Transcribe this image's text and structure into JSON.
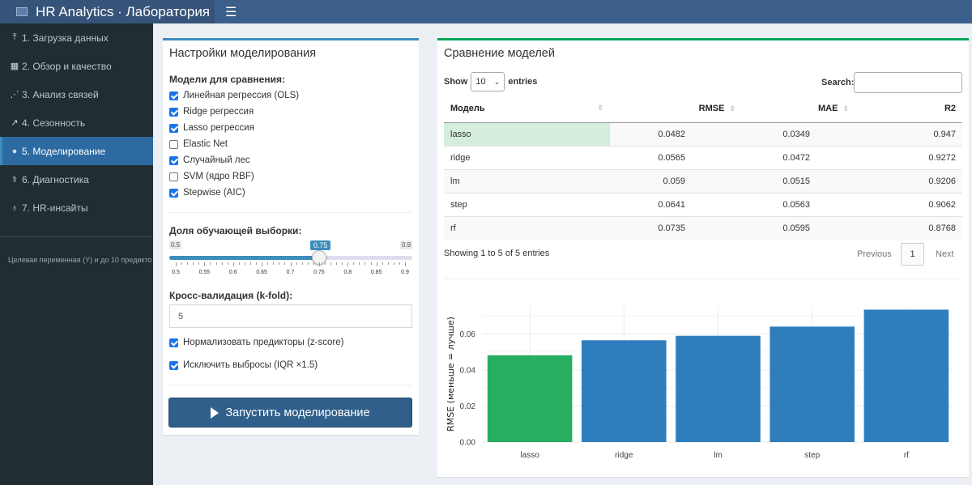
{
  "header": {
    "title": "HR Analytics · Лаборатория",
    "menu_icon": "hamburger-icon"
  },
  "sidebar": {
    "items": [
      {
        "label": "1. Загрузка данных",
        "icon": "upload-icon",
        "glyph": "⤒"
      },
      {
        "label": "2. Обзор и качество",
        "icon": "table-icon",
        "glyph": "▦"
      },
      {
        "label": "3. Анализ связей",
        "icon": "network-icon",
        "glyph": "⋰"
      },
      {
        "label": "4. Сезонность",
        "icon": "line-chart-icon",
        "glyph": "↗"
      },
      {
        "label": "5. Моделирование",
        "icon": "brain-icon",
        "glyph": "●",
        "active": true
      },
      {
        "label": "6. Диагностика",
        "icon": "stethoscope-icon",
        "glyph": "⚕"
      },
      {
        "label": "7. HR-инсайты",
        "icon": "lightbulb-icon",
        "glyph": "♁"
      }
    ],
    "note": "Целевая переменная (Y) и до 10 предикто"
  },
  "settings": {
    "title": "Настройки моделирования",
    "models_label": "Модели для сравнения:",
    "models": [
      {
        "label": "Линейная регрессия (OLS)",
        "checked": true
      },
      {
        "label": "Ridge регрессия",
        "checked": true
      },
      {
        "label": "Lasso регрессия",
        "checked": true
      },
      {
        "label": "Elastic Net",
        "checked": false
      },
      {
        "label": "Случайный лес",
        "checked": true
      },
      {
        "label": "SVM (ядро RBF)",
        "checked": false
      },
      {
        "label": "Stepwise (AIC)",
        "checked": true
      }
    ],
    "train_share": {
      "label": "Доля обучающей выборки:",
      "min": "0.5",
      "max": "0.9",
      "value": 0.75,
      "value_label": "0.75",
      "ticks": [
        "0.5",
        "0.55",
        "0.6",
        "0.65",
        "0.7",
        "0.75",
        "0.8",
        "0.85",
        "0.9"
      ]
    },
    "kfold": {
      "label": "Кросс-валидация (k-fold):",
      "value": "5"
    },
    "normalize": {
      "label": "Нормализовать предикторы (z-score)",
      "checked": true
    },
    "exclude_outliers": {
      "label": "Исключить выбросы (IQR ×1.5)",
      "checked": true
    },
    "run_button": "Запустить моделирование"
  },
  "comparison": {
    "title": "Сравнение моделей",
    "show_label": "Show",
    "entries_label": "entries",
    "page_length": "10",
    "search_label": "Search:",
    "columns": [
      "Модель",
      "RMSE",
      "MAE",
      "R2"
    ],
    "rows": [
      [
        "lasso",
        "0.0482",
        "0.0349",
        "0.947"
      ],
      [
        "ridge",
        "0.0565",
        "0.0472",
        "0.9272"
      ],
      [
        "lm",
        "0.059",
        "0.0515",
        "0.9206"
      ],
      [
        "step",
        "0.0641",
        "0.0563",
        "0.9062"
      ],
      [
        "rf",
        "0.0735",
        "0.0595",
        "0.8768"
      ]
    ],
    "info": "Showing 1 to 5 of 5 entries",
    "prev": "Previous",
    "page": "1",
    "next": "Next",
    "highlight_color": "#d4eddc"
  },
  "chart_data": {
    "type": "bar",
    "categories": [
      "lasso",
      "ridge",
      "lm",
      "step",
      "rf"
    ],
    "values": [
      0.0482,
      0.0565,
      0.059,
      0.0641,
      0.0735
    ],
    "ylabel": "RMSE (меньше = лучше)",
    "ylim": [
      0,
      0.0755
    ],
    "yticks": [
      "0.00",
      "0.02",
      "0.04",
      "0.06"
    ],
    "colors": [
      "#27ae60",
      "#2e7ebe",
      "#2e7ebe",
      "#2e7ebe",
      "#2e7ebe"
    ],
    "grid": true
  }
}
